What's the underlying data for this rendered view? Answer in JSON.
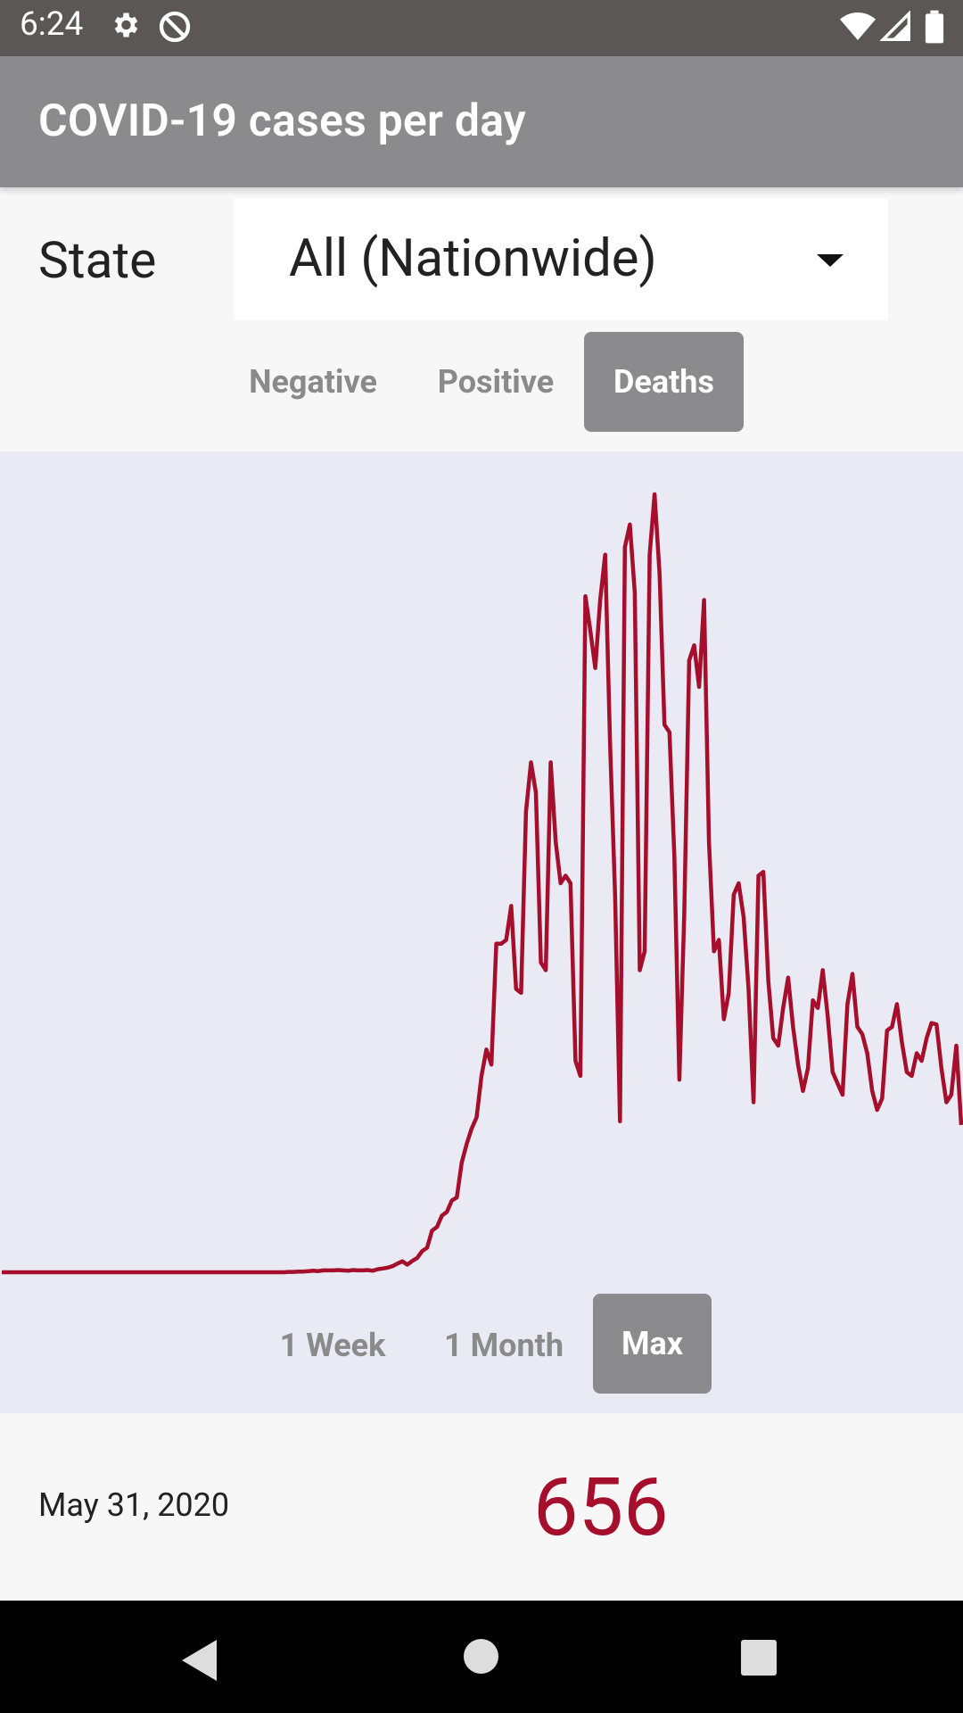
{
  "status_bar": {
    "time": "6:24",
    "icons": [
      "gear-icon",
      "data-saver-icon",
      "wifi-icon",
      "signal-icon",
      "battery-icon"
    ]
  },
  "app_bar": {
    "title": "COVID-19 cases per day"
  },
  "state": {
    "label": "State",
    "selected": "All (Nationwide)"
  },
  "metric_tabs": [
    {
      "label": "Negative",
      "active": false
    },
    {
      "label": "Positive",
      "active": false
    },
    {
      "label": "Deaths",
      "active": true
    }
  ],
  "range_tabs": [
    {
      "label": "1 Week",
      "active": false
    },
    {
      "label": "1 Month",
      "active": false
    },
    {
      "label": "Max",
      "active": true
    }
  ],
  "selected_point": {
    "date": "May 31, 2020",
    "value": "656"
  },
  "colors": {
    "line": "#a50f2c",
    "chart_bg": "#eaeaf4",
    "active_tab": "#8b8b8e"
  },
  "chart_data": {
    "type": "line",
    "series": [
      {
        "values": [
          0,
          0,
          0,
          0,
          0,
          0,
          0,
          0,
          0,
          0,
          0,
          0,
          0,
          0,
          0,
          0,
          0,
          0,
          0,
          0,
          0,
          0,
          0,
          0,
          0,
          0,
          0,
          0,
          0,
          0,
          0,
          0,
          0,
          0,
          0,
          0,
          0,
          0,
          0,
          0,
          0,
          0,
          0,
          0,
          0,
          0,
          0,
          0,
          0,
          0,
          0,
          0,
          0,
          0,
          0,
          0,
          0,
          0,
          1,
          1,
          2,
          2,
          3,
          4,
          3,
          5,
          5,
          5,
          6,
          5,
          4,
          6,
          5,
          5,
          6,
          4,
          8,
          10,
          12,
          16,
          23,
          29,
          20,
          30,
          38,
          56,
          65,
          110,
          120,
          150,
          160,
          190,
          198,
          290,
          340,
          380,
          410,
          520,
          590,
          550,
          870,
          870,
          880,
          970,
          750,
          740,
          1220,
          1350,
          1270,
          820,
          800,
          1350,
          1140,
          1030,
          1050,
          1030,
          560,
          520,
          1790,
          1700,
          1600,
          1780,
          1900,
          1400,
          1000,
          400,
          1920,
          1980,
          1800,
          800,
          850,
          1900,
          2060,
          1850,
          1450,
          1430,
          1100,
          510,
          950,
          1620,
          1660,
          1550,
          1780,
          1140,
          850,
          880,
          670,
          740,
          1000,
          1030,
          940,
          750,
          450,
          1050,
          1060,
          770,
          620,
          600,
          700,
          780,
          650,
          550,
          480,
          540,
          720,
          700,
          800,
          680,
          530,
          500,
          470,
          710,
          790,
          650,
          630,
          580,
          480,
          430,
          460,
          640,
          650,
          710,
          610,
          530,
          520,
          580,
          560,
          620,
          660,
          656,
          540,
          450,
          470,
          600,
          390
        ]
      }
    ],
    "x_range_label": "Max",
    "y_min": 0,
    "grid": false,
    "legend": "none"
  }
}
